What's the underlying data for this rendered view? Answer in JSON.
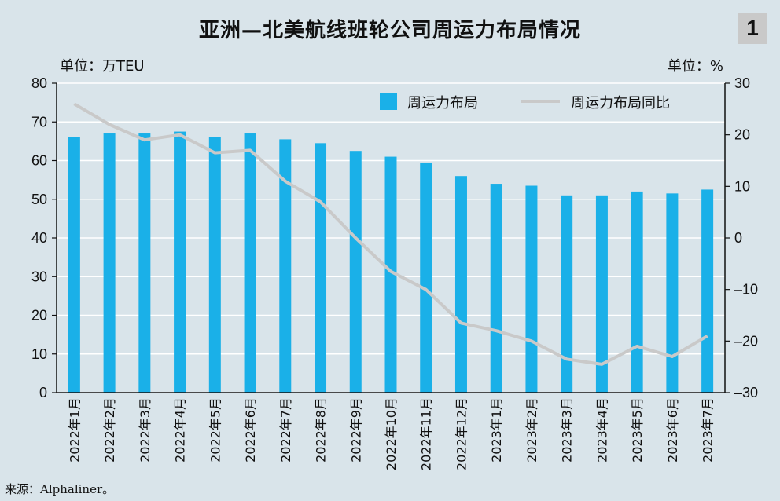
{
  "title": "亚洲—北美航线班轮公司周运力布局情况",
  "badge": "1",
  "unit_left": "单位：万TEU",
  "unit_right": "单位：%",
  "source": "来源：Alphaliner。",
  "colors": {
    "bar": "#1ab0e8",
    "line": "#c9c9c9",
    "background": "#d9e4ea",
    "grid": "#ffffff"
  },
  "chart_data": {
    "type": "bar",
    "categories": [
      "2022年1月",
      "2022年2月",
      "2022年3月",
      "2022年4月",
      "2022年5月",
      "2022年6月",
      "2022年7月",
      "2022年8月",
      "2022年9月",
      "2022年10月",
      "2022年11月",
      "2022年12月",
      "2023年1月",
      "2023年2月",
      "2023年3月",
      "2023年4月",
      "2023年5月",
      "2023年6月",
      "2023年7月"
    ],
    "series": [
      {
        "name": "周运力布局",
        "type": "bar",
        "axis": "left",
        "values": [
          66,
          67,
          67,
          67.5,
          66,
          67,
          65.5,
          64.5,
          62.5,
          61,
          59.5,
          56,
          54,
          53.5,
          51,
          51,
          52,
          51.5,
          52.5
        ]
      },
      {
        "name": "周运力布局同比",
        "type": "line",
        "axis": "right",
        "values": [
          26,
          22,
          19,
          20,
          16.5,
          17,
          11,
          7,
          0,
          -6.5,
          -10,
          -16.5,
          -18,
          -20,
          -23.5,
          -24.5,
          -21,
          -23,
          -19
        ]
      }
    ],
    "ylim_left": [
      0,
      80
    ],
    "yticks_left": [
      0,
      10,
      20,
      30,
      40,
      50,
      60,
      70,
      80
    ],
    "ylim_right": [
      -30,
      30
    ],
    "yticks_right": [
      "30",
      "20",
      "10",
      "0",
      "–10",
      "–20",
      "–30"
    ],
    "legend_position": "top-right",
    "grid": true
  }
}
